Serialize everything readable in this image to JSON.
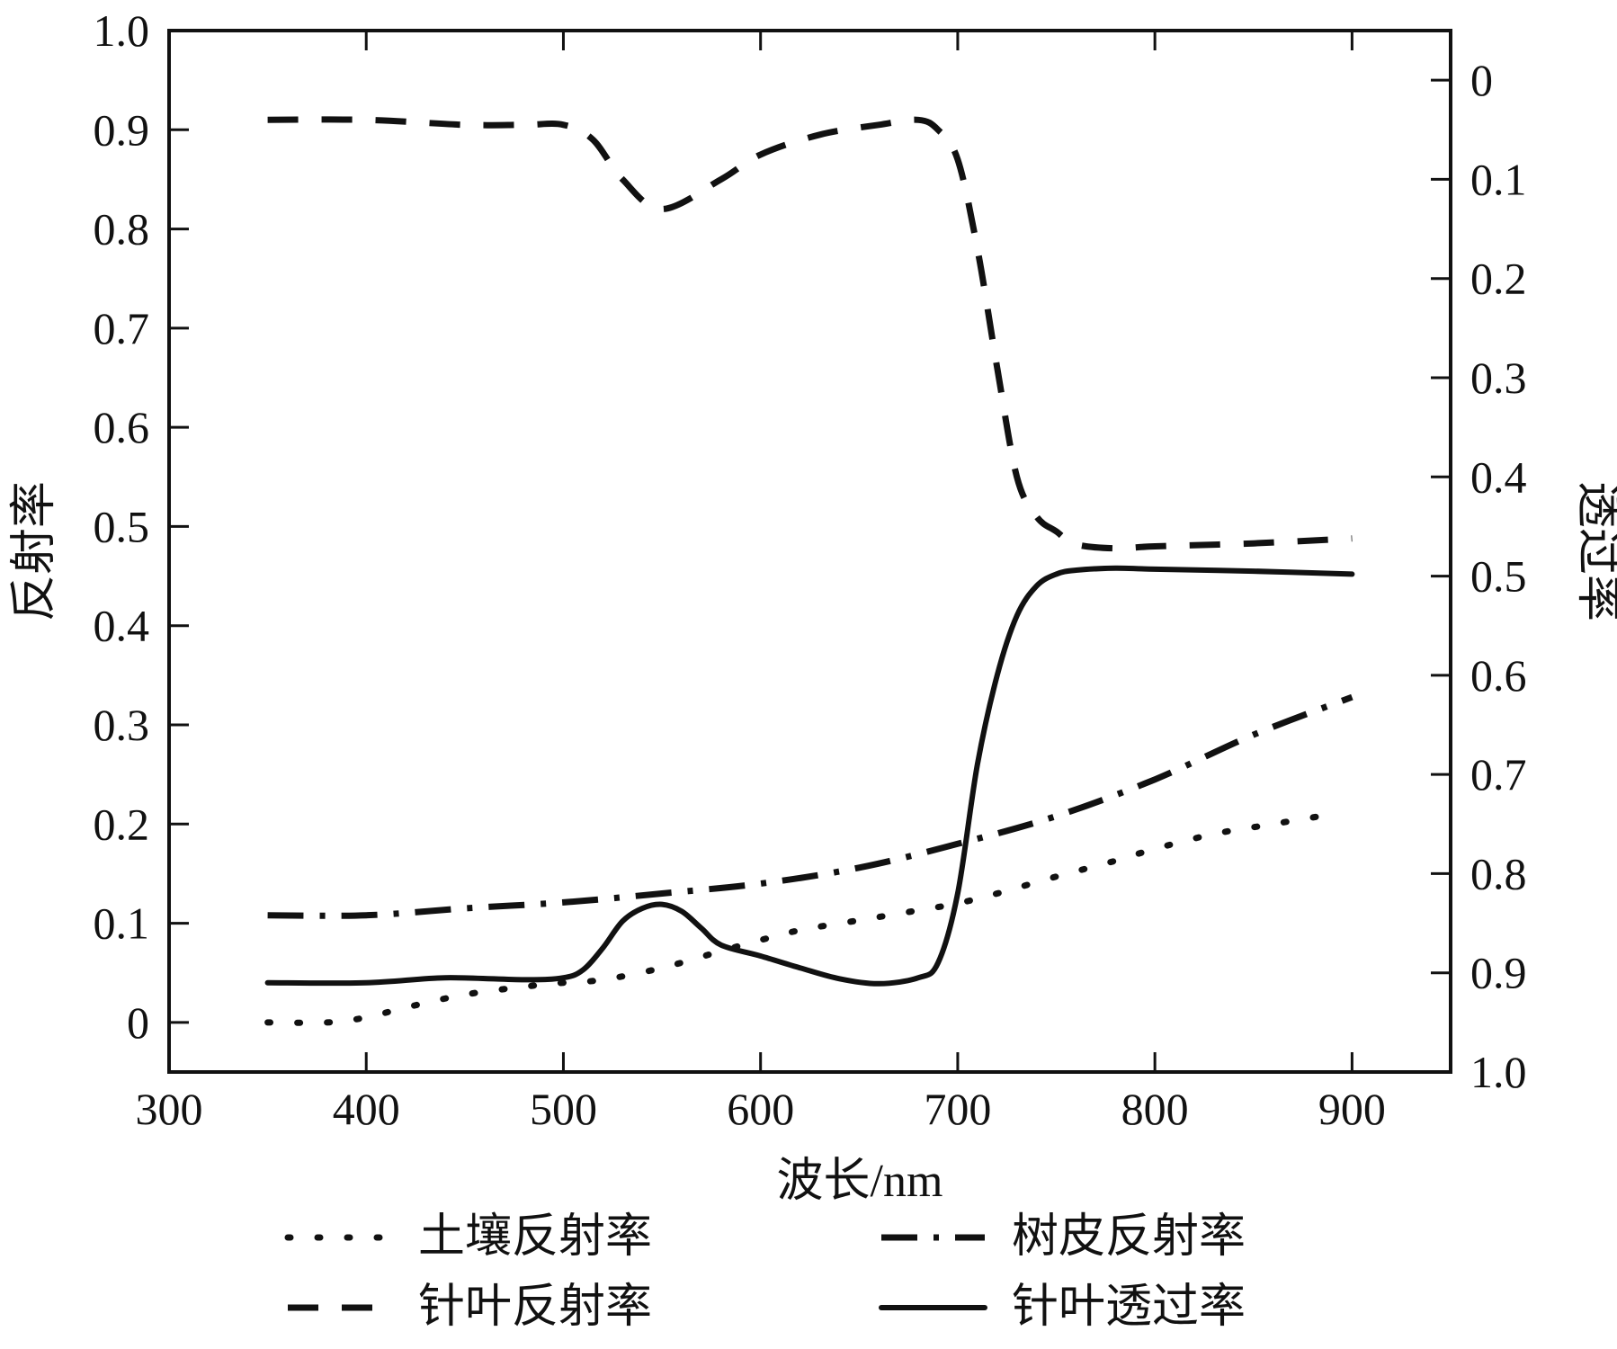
{
  "chart_data": {
    "type": "line",
    "xlabel": "波长/nm",
    "ylabel_left": "反射率",
    "ylabel_right": "透过率",
    "xlim": [
      300,
      950
    ],
    "ylim_left": [
      -0.05,
      1.0
    ],
    "ylim_right_inverted": [
      1.0,
      -0.05
    ],
    "x_ticks": [
      300,
      400,
      500,
      600,
      700,
      800,
      900
    ],
    "y_left_ticks": [
      0,
      0.1,
      0.2,
      0.3,
      0.4,
      0.5,
      0.6,
      0.7,
      0.8,
      0.9,
      1.0
    ],
    "y_left_tick_labels": [
      "0",
      "0.1",
      "0.2",
      "0.3",
      "0.4",
      "0.5",
      "0.6",
      "0.7",
      "0.8",
      "0.9",
      "1.0"
    ],
    "y_right_ticks": [
      0,
      0.1,
      0.2,
      0.3,
      0.4,
      0.5,
      0.6,
      0.7,
      0.8,
      0.9,
      1.0
    ],
    "y_right_tick_labels": [
      "0",
      "0.1",
      "0.2",
      "0.3",
      "0.4",
      "0.5",
      "0.6",
      "0.7",
      "0.8",
      "0.9",
      "1.0"
    ],
    "grid": false,
    "legend_position": "bottom",
    "series": [
      {
        "name": "土壤反射率",
        "axis": "left",
        "style": "dotted",
        "x": [
          350,
          380,
          400,
          420,
          450,
          480,
          500,
          520,
          550,
          580,
          600,
          620,
          650,
          680,
          700,
          720,
          750,
          780,
          800,
          830,
          860,
          890
        ],
        "values": [
          0.0,
          0.0,
          0.005,
          0.015,
          0.028,
          0.036,
          0.04,
          0.043,
          0.055,
          0.072,
          0.083,
          0.093,
          0.103,
          0.113,
          0.12,
          0.13,
          0.147,
          0.163,
          0.175,
          0.19,
          0.2,
          0.21
        ]
      },
      {
        "name": "树皮反射率",
        "axis": "left",
        "style": "dashdot",
        "x": [
          350,
          400,
          450,
          500,
          550,
          600,
          650,
          700,
          750,
          800,
          850,
          900
        ],
        "values": [
          0.108,
          0.108,
          0.115,
          0.121,
          0.13,
          0.14,
          0.156,
          0.18,
          0.208,
          0.245,
          0.29,
          0.328
        ]
      },
      {
        "name": "针叶反射率",
        "axis": "left",
        "style": "dashed",
        "x": [
          350,
          400,
          450,
          480,
          500,
          515,
          530,
          550,
          580,
          600,
          630,
          660,
          680,
          690,
          700,
          710,
          720,
          730,
          740,
          750,
          760,
          780,
          800,
          850,
          900
        ],
        "values": [
          0.91,
          0.91,
          0.905,
          0.905,
          0.905,
          0.89,
          0.85,
          0.82,
          0.85,
          0.875,
          0.895,
          0.905,
          0.91,
          0.9,
          0.87,
          0.78,
          0.66,
          0.55,
          0.51,
          0.495,
          0.482,
          0.478,
          0.48,
          0.483,
          0.488
        ]
      },
      {
        "name": "针叶透过率",
        "axis": "right",
        "style": "solid",
        "x": [
          350,
          400,
          440,
          480,
          500,
          510,
          520,
          530,
          540,
          550,
          560,
          570,
          580,
          600,
          620,
          640,
          660,
          680,
          690,
          700,
          710,
          720,
          730,
          740,
          750,
          760,
          780,
          800,
          850,
          900
        ],
        "values": [
          0.91,
          0.91,
          0.905,
          0.907,
          0.905,
          0.897,
          0.875,
          0.848,
          0.835,
          0.831,
          0.838,
          0.855,
          0.872,
          0.883,
          0.895,
          0.906,
          0.911,
          0.905,
          0.89,
          0.82,
          0.69,
          0.6,
          0.54,
          0.51,
          0.498,
          0.494,
          0.492,
          0.493,
          0.495,
          0.498
        ]
      }
    ]
  }
}
